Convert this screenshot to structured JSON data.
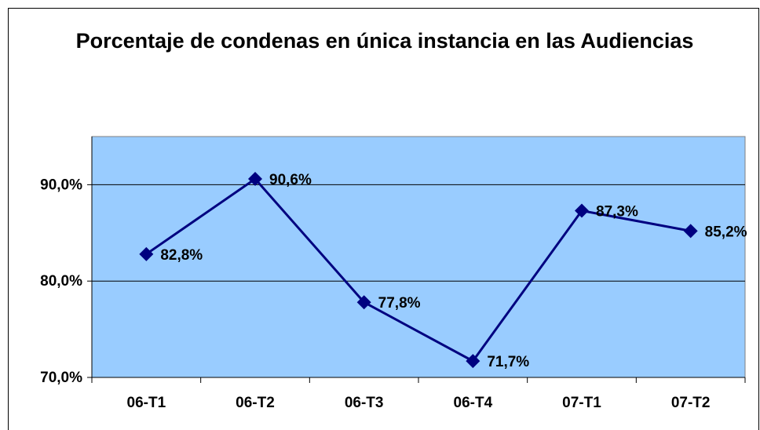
{
  "chart_data": {
    "type": "line",
    "title": "Porcentaje de condenas en única instancia en las Audiencias",
    "categories": [
      "06-T1",
      "06-T2",
      "06-T3",
      "06-T4",
      "07-T1",
      "07-T2"
    ],
    "series": [
      {
        "name": "Porcentaje",
        "color": "#000080",
        "values": [
          82.8,
          90.6,
          77.8,
          71.7,
          87.3,
          85.2
        ],
        "value_labels": [
          "82,8%",
          "90,6%",
          "77,8%",
          "71,7%",
          "87,3%",
          "85,2%"
        ]
      }
    ],
    "ylim": [
      70,
      95
    ],
    "yticks": [
      {
        "value": 70,
        "label": "70,0%"
      },
      {
        "value": 80,
        "label": "80,0%"
      },
      {
        "value": 90,
        "label": "90,0%"
      }
    ],
    "grid": true,
    "plot_background": "#99ccff"
  }
}
